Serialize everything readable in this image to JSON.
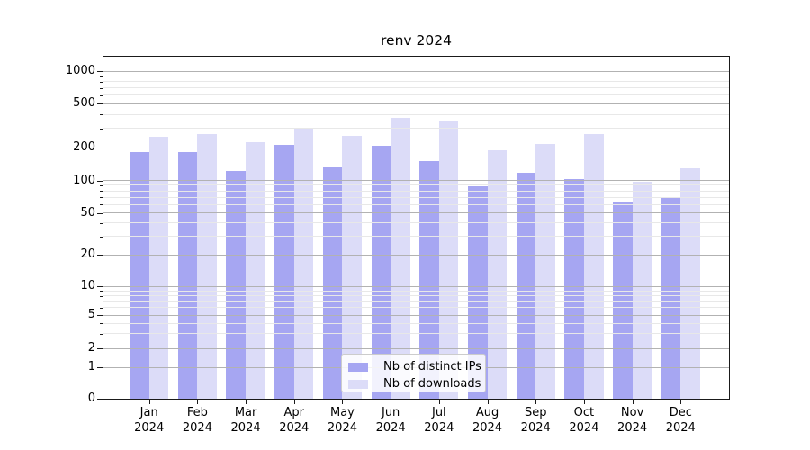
{
  "chart_data": {
    "type": "bar",
    "title": "renv 2024",
    "categories": [
      {
        "line1": "Jan",
        "line2": "2024"
      },
      {
        "line1": "Feb",
        "line2": "2024"
      },
      {
        "line1": "Mar",
        "line2": "2024"
      },
      {
        "line1": "Apr",
        "line2": "2024"
      },
      {
        "line1": "May",
        "line2": "2024"
      },
      {
        "line1": "Jun",
        "line2": "2024"
      },
      {
        "line1": "Jul",
        "line2": "2024"
      },
      {
        "line1": "Aug",
        "line2": "2024"
      },
      {
        "line1": "Sep",
        "line2": "2024"
      },
      {
        "line1": "Oct",
        "line2": "2024"
      },
      {
        "line1": "Nov",
        "line2": "2024"
      },
      {
        "line1": "Dec",
        "line2": "2024"
      }
    ],
    "series": [
      {
        "name": "Nb of distinct IPs",
        "color": "#a6a6f2",
        "values": [
          183,
          184,
          122,
          213,
          131,
          209,
          150,
          89,
          117,
          102,
          62,
          70
        ]
      },
      {
        "name": "Nb of downloads",
        "color": "#dcdcf8",
        "values": [
          251,
          266,
          226,
          299,
          258,
          372,
          346,
          189,
          216,
          264,
          98,
          129
        ]
      }
    ],
    "yaxis": {
      "scale": "asinh-log",
      "major_ticks": [
        0,
        1,
        2,
        5,
        10,
        20,
        50,
        100,
        200,
        500,
        1000
      ],
      "minor_ticks": [
        3,
        4,
        6,
        7,
        8,
        9,
        30,
        40,
        60,
        70,
        80,
        90,
        300,
        400,
        600,
        700,
        800,
        900
      ],
      "range_top_value": 1500
    },
    "legend_position": "lower center",
    "grid": true,
    "colors": {
      "major_grid": "#b2b2b2",
      "minor_grid": "#e8e8e8",
      "spine": "#1a1a1a",
      "background": "#ffffff"
    }
  }
}
